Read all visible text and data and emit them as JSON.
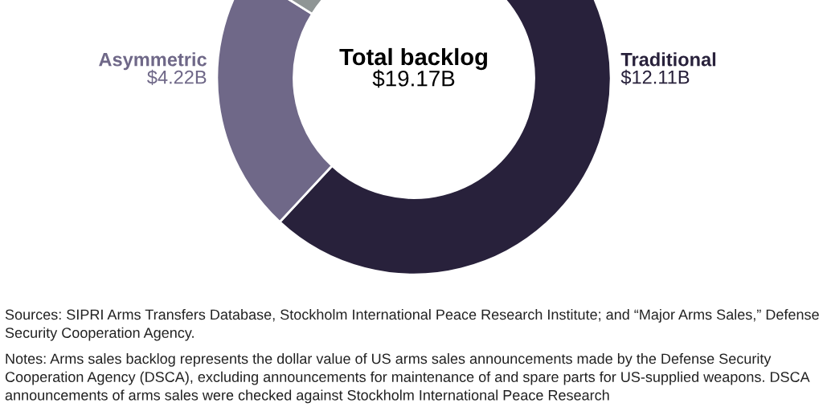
{
  "chart_data": {
    "type": "donut",
    "title": "Total backlog",
    "subtitle": "$19.17B",
    "categories": [
      "Traditional",
      "Asymmetric",
      null
    ],
    "values": [
      12.11,
      4.22,
      2.84
    ],
    "colors": [
      "#28213b",
      "#6f6888",
      "#8f9595"
    ],
    "value_labels": [
      "$12.11B",
      "$4.22B",
      null
    ],
    "annotations": [
      "Sources: SIPRI Arms Transfers Database, Stockholm International Peace Research Institute; and “Major Arms Sales,” Defense Security Cooperation Agency.",
      "Notes: Arms sales backlog represents the dollar value of US arms sales announcements made by the Defense Security Cooperation Agency (DSCA), excluding announcements for maintenance of and spare parts for US-supplied weapons. DSCA announcements of arms sales were checked against Stockholm International Peace Research"
    ]
  }
}
